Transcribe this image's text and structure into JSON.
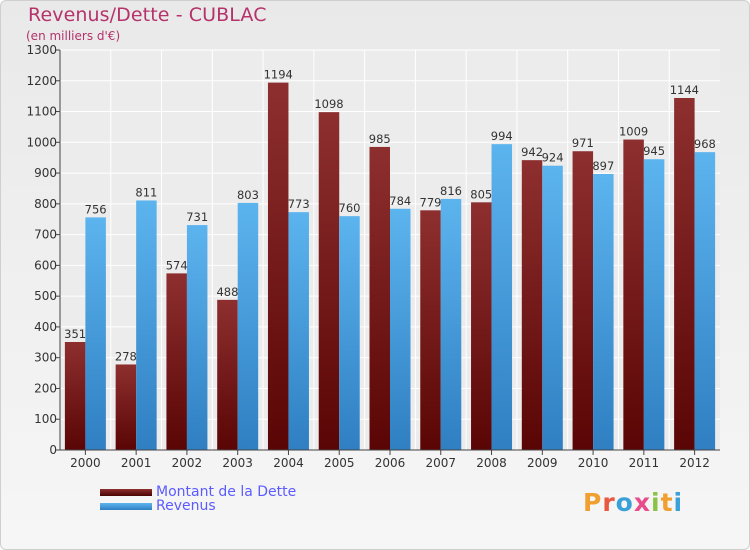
{
  "title": "Revenus/Dette - CUBLAC",
  "subtitle": "(en milliers d'€)",
  "logo": {
    "letters": [
      "P",
      "r",
      "o",
      "x",
      "i",
      "t",
      "i"
    ],
    "colors": [
      "#f0a030",
      "#e9573f",
      "#3aa0d8",
      "#e84c8b",
      "#8bc34a",
      "#f0a030",
      "#3aa0d8"
    ]
  },
  "chart_data": {
    "type": "bar",
    "categories": [
      "2000",
      "2001",
      "2002",
      "2003",
      "2004",
      "2005",
      "2006",
      "2007",
      "2008",
      "2009",
      "2010",
      "2011",
      "2012"
    ],
    "series": [
      {
        "name": "Montant de la Dette",
        "color": "#7a1c1c",
        "values": [
          351,
          278,
          574,
          488,
          1194,
          1098,
          985,
          779,
          805,
          942,
          971,
          1009,
          1144
        ]
      },
      {
        "name": "Revenus",
        "color": "#4ba3e3",
        "values": [
          756,
          811,
          731,
          803,
          773,
          760,
          784,
          816,
          994,
          924,
          897,
          945,
          968
        ]
      }
    ],
    "ylim": [
      0,
      1300
    ],
    "yticks": [
      0,
      100,
      200,
      300,
      400,
      500,
      600,
      700,
      800,
      900,
      1000,
      1100,
      1200,
      1300
    ],
    "grid": true,
    "legend": "bottom-left"
  }
}
